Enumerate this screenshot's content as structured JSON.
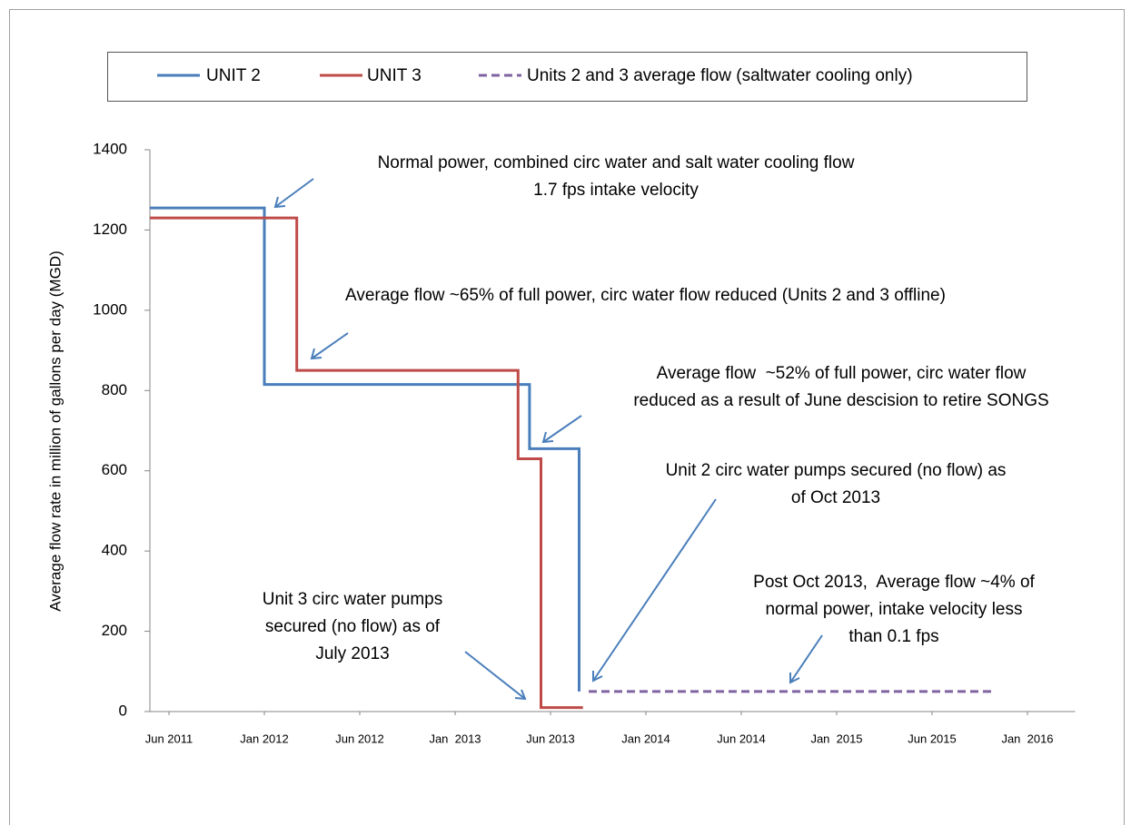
{
  "chart_data": {
    "type": "line",
    "y_label": "Average flow rate in million of gallons per day (MGD)",
    "xlim": [
      2011.4,
      2016.25
    ],
    "xticks": [
      {
        "value": 2011.5,
        "label": "Jun 2011"
      },
      {
        "value": 2012.0,
        "label": "Jan 2012"
      },
      {
        "value": 2012.5,
        "label": "Jun 2012"
      },
      {
        "value": 2013.0,
        "label": "Jan  2013"
      },
      {
        "value": 2013.5,
        "label": "Jun 2013"
      },
      {
        "value": 2014.0,
        "label": "Jan 2014"
      },
      {
        "value": 2014.5,
        "label": "Jun 2014"
      },
      {
        "value": 2015.0,
        "label": "Jan  2015"
      },
      {
        "value": 2015.5,
        "label": "Jun 2015"
      },
      {
        "value": 2016.0,
        "label": "Jan  2016"
      }
    ],
    "ylim": [
      0,
      1400
    ],
    "yticks": [
      0,
      200,
      400,
      600,
      800,
      1000,
      1200,
      1400
    ],
    "series": [
      {
        "name": "UNIT 2",
        "color": "#4a7ebb",
        "dash": false,
        "x": [
          2011.4,
          2012.0,
          2012.0,
          2013.39,
          2013.39,
          2013.65,
          2013.65
        ],
        "values": [
          1255,
          1255,
          815,
          815,
          655,
          655,
          50
        ]
      },
      {
        "name": "UNIT 3",
        "color": "#be4b48",
        "dash": false,
        "x": [
          2011.4,
          2012.17,
          2012.17,
          2013.33,
          2013.33,
          2013.45,
          2013.45,
          2013.67
        ],
        "values": [
          1230,
          1230,
          850,
          850,
          630,
          630,
          10,
          10
        ]
      },
      {
        "name": "Units 2 and 3 average flow (saltwater cooling only)",
        "color": "#8064a2",
        "dash": true,
        "x": [
          2013.7,
          2015.83
        ],
        "values": [
          50,
          50
        ]
      }
    ],
    "annotations": [
      {
        "lines": [
          "Normal power, combined circ water and salt water cooling flow",
          "1.7 fps intake velocity"
        ]
      },
      {
        "lines": [
          "Average flow ~65% of full power, circ water flow reduced (Units 2 and 3 offline)"
        ]
      },
      {
        "lines": [
          "Average flow  ~52% of full power, circ water flow",
          "reduced as a result of June descision to retire SONGS"
        ]
      },
      {
        "lines": [
          "Unit 2 circ water pumps secured (no flow) as",
          "of Oct 2013"
        ]
      },
      {
        "lines": [
          "Unit 3 circ water pumps",
          "secured (no flow) as of",
          "July 2013"
        ]
      },
      {
        "lines": [
          "Post Oct 2013,  Average flow ~4% of",
          "normal power, intake velocity less",
          "than 0.1 fps"
        ]
      }
    ]
  }
}
